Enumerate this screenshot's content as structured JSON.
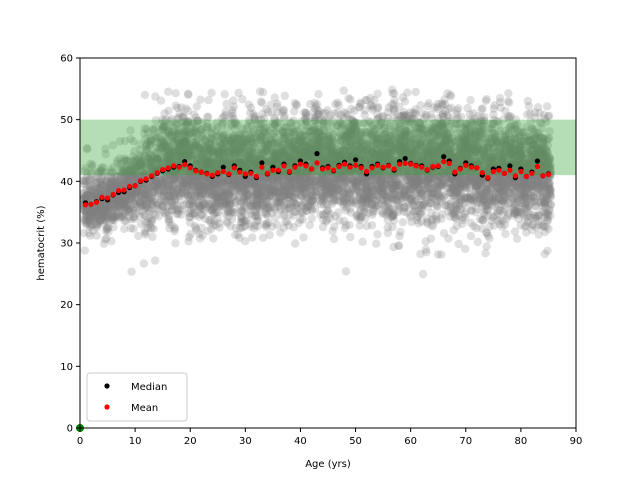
{
  "chart_data": {
    "type": "scatter",
    "title": "",
    "xlabel": "Age (yrs)",
    "ylabel": "hematocrit (%)",
    "xlim": [
      0,
      90
    ],
    "ylim": [
      0,
      60
    ],
    "xticks": [
      0,
      10,
      20,
      30,
      40,
      50,
      60,
      70,
      80,
      90
    ],
    "yticks": [
      0,
      10,
      20,
      30,
      40,
      50,
      60
    ],
    "grid": false,
    "legend_placement": "lower-left",
    "reference_band": {
      "y_from": 41,
      "y_to": 50,
      "color": "#2ca02c"
    },
    "raw_points_color": "#808080",
    "series": [
      {
        "name": "Median",
        "color": "#000000",
        "x": [
          1,
          2,
          3,
          4,
          5,
          6,
          7,
          8,
          9,
          10,
          11,
          12,
          13,
          14,
          15,
          16,
          17,
          18,
          19,
          20,
          21,
          22,
          23,
          24,
          25,
          26,
          27,
          28,
          29,
          30,
          31,
          32,
          33,
          34,
          35,
          36,
          37,
          38,
          39,
          40,
          41,
          42,
          43,
          44,
          45,
          46,
          47,
          48,
          49,
          50,
          51,
          52,
          53,
          54,
          55,
          56,
          57,
          58,
          59,
          60,
          61,
          62,
          63,
          64,
          65,
          66,
          67,
          68,
          69,
          70,
          71,
          72,
          73,
          74,
          75,
          76,
          77,
          78,
          79,
          80,
          81,
          82,
          83,
          84,
          85
        ],
        "values": [
          36.5,
          36.3,
          36.7,
          37.2,
          37.0,
          37.8,
          38.2,
          38.3,
          39.0,
          39.3,
          40.0,
          40.2,
          40.8,
          41.3,
          41.7,
          42.0,
          42.3,
          42.4,
          43.2,
          42.5,
          41.8,
          41.5,
          41.3,
          40.8,
          41.2,
          42.3,
          41.1,
          42.5,
          41.8,
          40.8,
          41.5,
          40.6,
          43.0,
          41.2,
          42.3,
          41.6,
          42.8,
          41.5,
          42.5,
          43.3,
          42.8,
          42.0,
          44.5,
          42.2,
          42.4,
          41.7,
          42.6,
          43.1,
          42.5,
          43.5,
          42.4,
          41.2,
          42.4,
          42.8,
          42.2,
          42.6,
          41.8,
          43.2,
          43.7,
          42.9,
          42.6,
          42.5,
          41.8,
          42.3,
          42.4,
          44.0,
          43.3,
          41.2,
          42.1,
          43.0,
          42.5,
          42.2,
          41.0,
          40.5,
          42.0,
          42.1,
          41.3,
          42.5,
          40.6,
          42.0,
          40.8,
          41.5,
          43.3,
          40.9,
          41.2
        ]
      },
      {
        "name": "Mean",
        "color": "#ff0000",
        "x": [
          1,
          2,
          3,
          4,
          5,
          6,
          7,
          8,
          9,
          10,
          11,
          12,
          13,
          14,
          15,
          16,
          17,
          18,
          19,
          20,
          21,
          22,
          23,
          24,
          25,
          26,
          27,
          28,
          29,
          30,
          31,
          32,
          33,
          34,
          35,
          36,
          37,
          38,
          39,
          40,
          41,
          42,
          43,
          44,
          45,
          46,
          47,
          48,
          49,
          50,
          51,
          52,
          53,
          54,
          55,
          56,
          57,
          58,
          59,
          60,
          61,
          62,
          63,
          64,
          65,
          66,
          67,
          68,
          69,
          70,
          71,
          72,
          73,
          74,
          75,
          76,
          77,
          78,
          79,
          80,
          81,
          82,
          83,
          84,
          85
        ],
        "values": [
          36.2,
          36.3,
          36.6,
          37.4,
          37.3,
          37.9,
          38.5,
          38.6,
          39.2,
          39.3,
          40.1,
          40.4,
          40.9,
          41.4,
          41.9,
          42.2,
          42.5,
          42.3,
          42.7,
          42.2,
          41.7,
          41.5,
          41.2,
          41.0,
          41.4,
          41.6,
          41.2,
          42.2,
          41.5,
          41.2,
          41.3,
          40.8,
          42.3,
          41.3,
          41.8,
          41.8,
          42.5,
          41.6,
          42.3,
          42.8,
          42.5,
          42.0,
          43.0,
          42.0,
          42.2,
          41.8,
          42.4,
          42.8,
          42.3,
          42.6,
          42.2,
          41.6,
          42.2,
          42.6,
          42.3,
          42.5,
          42.0,
          42.8,
          42.9,
          42.8,
          42.5,
          42.3,
          41.9,
          42.4,
          42.5,
          43.2,
          42.9,
          41.5,
          42.0,
          42.6,
          42.3,
          42.2,
          41.4,
          40.6,
          41.6,
          41.8,
          41.3,
          41.8,
          40.9,
          41.6,
          40.8,
          41.3,
          42.4,
          40.9,
          41.1
        ]
      }
    ]
  }
}
